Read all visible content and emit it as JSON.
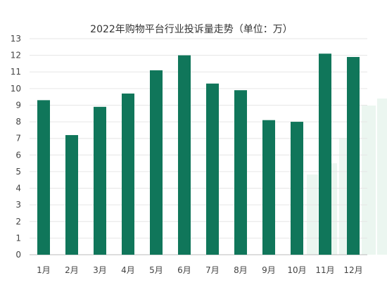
{
  "chart_data": {
    "type": "bar",
    "title": "2022年购物平台行业投诉量走势（单位：万）",
    "xlabel": "",
    "ylabel": "",
    "categories": [
      "1月",
      "2月",
      "3月",
      "4月",
      "5月",
      "6月",
      "7月",
      "8月",
      "9月",
      "10月",
      "11月",
      "12月"
    ],
    "values": [
      9.3,
      7.2,
      8.9,
      9.7,
      11.1,
      12.0,
      10.3,
      9.9,
      8.1,
      8.0,
      12.1,
      11.9
    ],
    "ylim": [
      0,
      13
    ],
    "yticks": [
      0,
      1,
      2,
      3,
      4,
      5,
      6,
      7,
      8,
      9,
      10,
      11,
      12,
      13
    ],
    "grid": true,
    "legend": "none",
    "colors": {
      "bar": "#10765a",
      "grid": "#e6e6e6",
      "axis": "#bbbbbb",
      "text": "#444444",
      "decoration": "#dbeee4"
    }
  }
}
